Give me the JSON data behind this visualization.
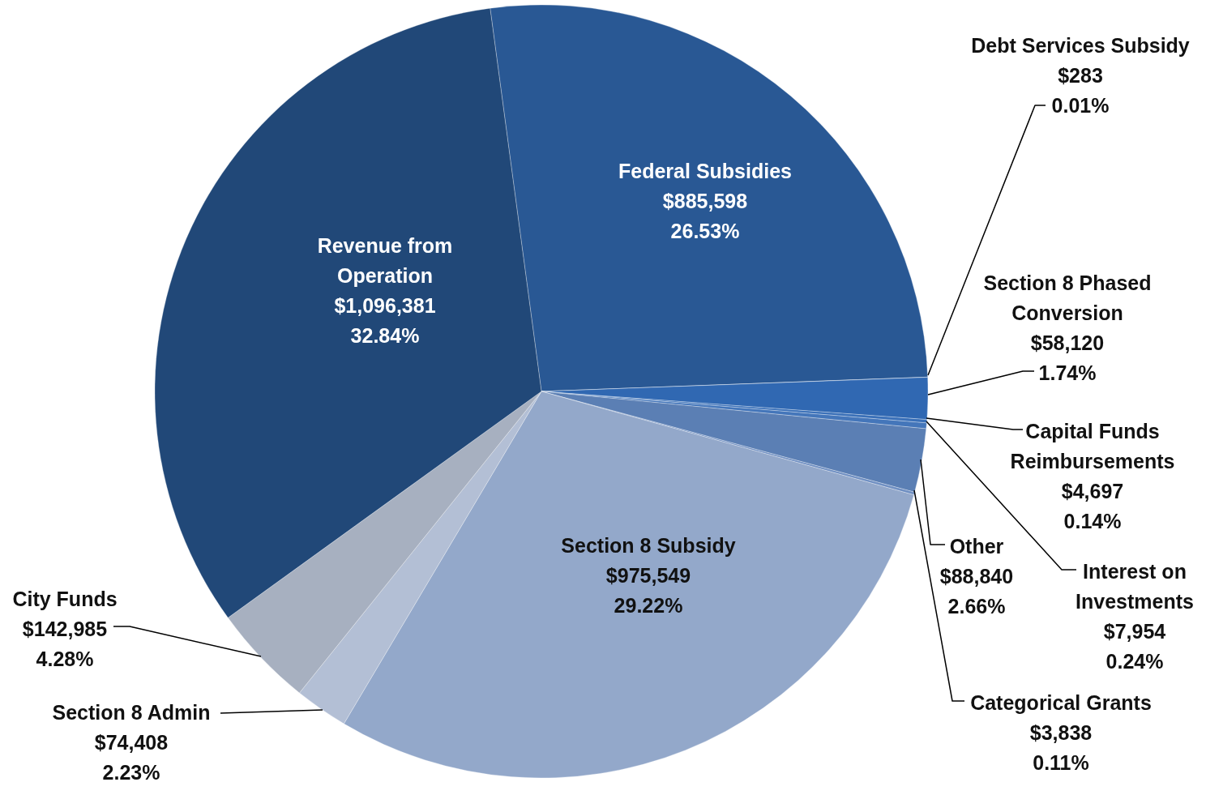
{
  "chart_data": {
    "type": "pie",
    "categories": [
      "Federal Subsidies",
      "Debt Services Subsidy",
      "Section 8 Phased Conversion",
      "Capital Funds Reimbursements",
      "Interest on Investments",
      "Other",
      "Categorical Grants",
      "Section 8 Subsidy",
      "Section 8 Admin",
      "City Funds",
      "Revenue from Operation"
    ],
    "values": [
      885598,
      283,
      58120,
      4697,
      7954,
      88840,
      3838,
      975549,
      74408,
      142985,
      1096381
    ],
    "value_labels": [
      "$885,598\n26.53%",
      "$283\n0.01%",
      "$58,120\n1.74%",
      "$4,697\n0.14%",
      "$7,954\n0.24%",
      "$88,840\n2.66%",
      "$3,838\n0.11%",
      "$975,549\n29.22%",
      "$74,408\n2.23%",
      "$142,985\n4.28%",
      "$1,096,381\n32.84%"
    ],
    "colors": [
      "#295894",
      "#2c63ab",
      "#3068b2",
      "#3a70b8",
      "#4476ba",
      "#5b7fb4",
      "#6f8fc2",
      "#93a8ca",
      "#b3bfd5",
      "#a7b0c0",
      "#214878"
    ]
  }
}
